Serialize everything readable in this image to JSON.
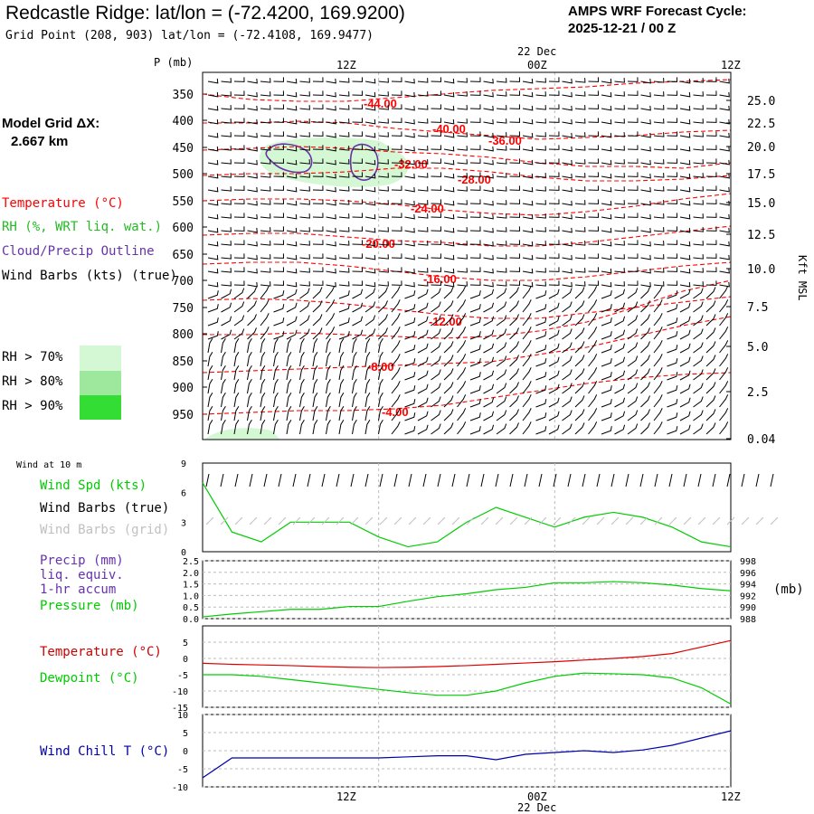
{
  "header": {
    "title": "Redcastle Ridge:  lat/lon = (-72.4200, 169.9200)",
    "grid_point": "Grid Point (208, 903) lat/lon = (-72.4108, 169.9477)",
    "cycle_line1": "AMPS WRF Forecast Cycle:",
    "cycle_line2": "2025-12-21 / 00  Z"
  },
  "model_grid": {
    "label": "Model Grid ΔX:",
    "value": "2.667 km"
  },
  "time_axis": {
    "ticks": [
      "12Z",
      "00Z",
      "12Z"
    ],
    "date_label": "22 Dec"
  },
  "colors": {
    "temperature": "#ff0000",
    "rh": "#22bb22",
    "cloud": "#6633aa",
    "wind_grid": "#c0c0c0",
    "pressure": "#00cc00",
    "precip": "#6633aa",
    "dewpoint": "#00cc00",
    "windchill": "#0000aa",
    "rh70": "#d4f7d4",
    "rh80": "#9de89d",
    "rh90": "#33dd33"
  },
  "legend": {
    "temperature": "Temperature (°C)",
    "rh": "RH (%, WRT liq. wat.)",
    "cloud": "Cloud/Precip Outline",
    "wind": "Wind Barbs (kts) (true)",
    "rh70": "RH > 70%",
    "rh80": "RH > 80%",
    "rh90": "RH > 90%"
  },
  "upper_panel": {
    "y_title": "P (mb)",
    "pressure_labels": [
      "350",
      "400",
      "450",
      "500",
      "550",
      "600",
      "650",
      "700",
      "750",
      "800",
      "850",
      "900",
      "950"
    ],
    "kft_labels": [
      "25.0",
      "22.5",
      "20.0",
      "17.5",
      "15.0",
      "12.5",
      "10.0",
      "7.5",
      "5.0",
      "2.5",
      "0.04"
    ],
    "kft_title": "Kft MSL",
    "isotherm_labels": [
      "-44.00",
      "-40.00",
      "-36.00",
      "-32.00",
      "-28.00",
      "-24.00",
      "-20.00",
      "-16.00",
      "-12.00",
      "-8.00",
      "-4.00"
    ]
  },
  "wind10": {
    "title": "Wind at 10 m",
    "spd_label": "Wind Spd (kts)",
    "barb_label": "Wind Barbs (true)",
    "grid_label": "Wind Barbs (grid)",
    "y_ticks": [
      "9",
      "6",
      "3",
      "0"
    ]
  },
  "precip_panel": {
    "precip_label": "Precip (mm)",
    "liq_label": "liq. equiv.",
    "accum_label": "1-hr accum",
    "pressure_label": "Pressure (mb)",
    "left_ticks": [
      "2.5",
      "2.0",
      "1.5",
      "1.0",
      "0.5",
      "0.0"
    ],
    "right_ticks": [
      "998",
      "996",
      "994",
      "992",
      "990",
      "988"
    ],
    "unit": "(mb)"
  },
  "temp_panel": {
    "temp_label": "Temperature (°C)",
    "dew_label": "Dewpoint (°C)",
    "ticks": [
      "5",
      "0",
      "-5",
      "-10",
      "-15"
    ]
  },
  "chill_panel": {
    "label": "Wind Chill T (°C)",
    "ticks": [
      "10",
      "5",
      "0",
      "-5",
      "-10"
    ]
  },
  "chart_data": [
    {
      "type": "line",
      "title": "Wind at 10 m",
      "x_hours": [
        0,
        2,
        4,
        6,
        8,
        10,
        12,
        14,
        16,
        18,
        20,
        22,
        24,
        26,
        28,
        30,
        32,
        34,
        36
      ],
      "series": [
        {
          "name": "Wind Spd (kts)",
          "values": [
            7,
            2,
            1,
            3,
            3,
            3,
            1.5,
            0.5,
            1,
            3,
            4.5,
            3.5,
            2.5,
            3.5,
            4,
            3.5,
            2.5,
            1,
            0.5
          ]
        }
      ],
      "ylim": [
        0,
        9
      ]
    },
    {
      "type": "line",
      "title": "Pressure",
      "x_hours": [
        0,
        2,
        4,
        6,
        8,
        10,
        12,
        14,
        16,
        18,
        20,
        22,
        24,
        26,
        28,
        30,
        32,
        34,
        36
      ],
      "series": [
        {
          "name": "Pressure (mb)",
          "values": [
            988.3,
            988.8,
            989.2,
            989.6,
            989.6,
            990.1,
            990.1,
            991.0,
            991.8,
            992.3,
            993.0,
            993.4,
            994.2,
            994.2,
            994.4,
            994.2,
            993.8,
            993.2,
            992.8
          ]
        }
      ],
      "ylim": [
        988,
        998
      ]
    },
    {
      "type": "line",
      "title": "Temperature / Dewpoint",
      "x_hours": [
        0,
        2,
        4,
        6,
        8,
        10,
        12,
        14,
        16,
        18,
        20,
        22,
        24,
        26,
        28,
        30,
        32,
        34,
        36
      ],
      "series": [
        {
          "name": "Temperature (°C)",
          "values": [
            -1.5,
            -1.8,
            -2.0,
            -2.2,
            -2.5,
            -2.7,
            -2.8,
            -2.7,
            -2.5,
            -2.2,
            -1.8,
            -1.4,
            -1.0,
            -0.5,
            0,
            0.6,
            1.5,
            3.5,
            5.5
          ]
        },
        {
          "name": "Dewpoint (°C)",
          "values": [
            -5,
            -5,
            -5.5,
            -6.5,
            -7.5,
            -8.5,
            -9.5,
            -10.5,
            -11.3,
            -11.3,
            -10,
            -7.5,
            -5.5,
            -4.5,
            -4.7,
            -5,
            -6,
            -9,
            -14
          ]
        }
      ],
      "ylim": [
        -15,
        10
      ]
    },
    {
      "type": "line",
      "title": "Wind Chill T",
      "x_hours": [
        0,
        2,
        4,
        6,
        8,
        10,
        12,
        14,
        16,
        18,
        20,
        22,
        24,
        26,
        28,
        30,
        32,
        34,
        36
      ],
      "series": [
        {
          "name": "Wind Chill T (°C)",
          "values": [
            -7.5,
            -2,
            -2,
            -2,
            -2,
            -2,
            -2,
            -1.7,
            -1.4,
            -1.4,
            -2.5,
            -1,
            -0.5,
            0,
            -0.5,
            0.2,
            1.5,
            3.5,
            5.5
          ]
        }
      ],
      "ylim": [
        -10,
        10
      ]
    }
  ]
}
